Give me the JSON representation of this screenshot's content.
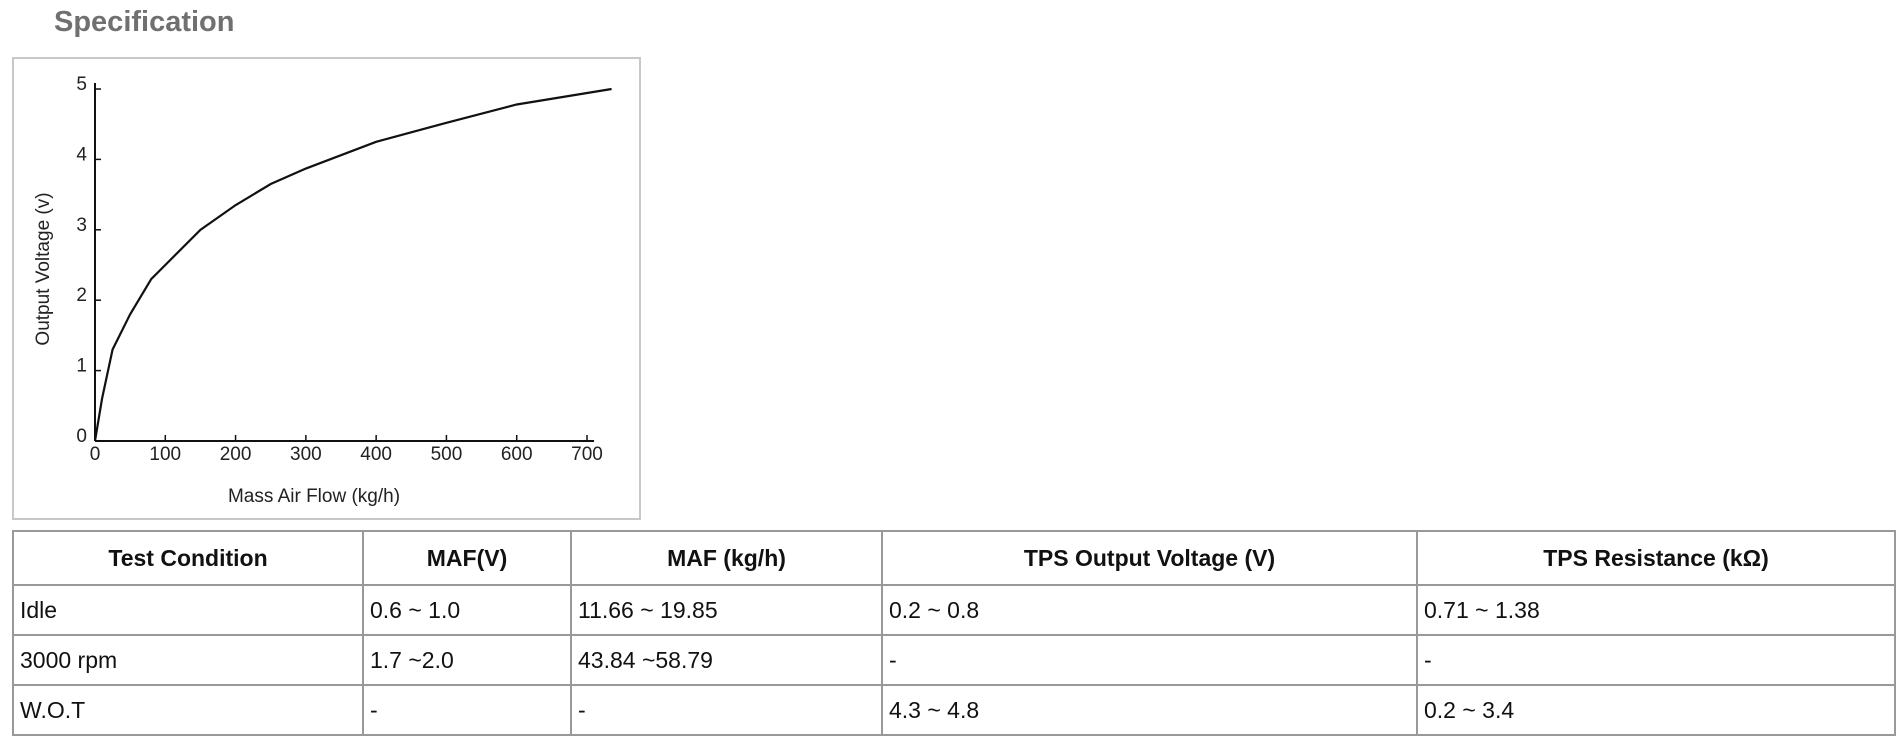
{
  "header": {
    "title": "Specification"
  },
  "chart_data": {
    "type": "line",
    "xlabel": "Mass Air Flow (kg/h)",
    "ylabel": "Output Voltage (v)",
    "x": [
      0,
      10,
      25,
      50,
      80,
      100,
      150,
      200,
      250,
      300,
      400,
      500,
      600,
      735
    ],
    "series": [
      {
        "color": "#111111",
        "values": [
          0,
          0.6,
          1.3,
          1.8,
          2.3,
          2.5,
          3.0,
          3.35,
          3.65,
          3.87,
          4.25,
          4.52,
          4.78,
          5.0
        ]
      }
    ],
    "xlim": [
      0,
      710
    ],
    "ylim": [
      0,
      5
    ],
    "xticks": [
      0,
      100,
      200,
      300,
      400,
      500,
      600,
      700
    ],
    "yticks": [
      0,
      1,
      2,
      3,
      4,
      5
    ]
  },
  "table": {
    "header": [
      "Test Condition",
      "MAF(V)",
      "MAF (kg/h)",
      "TPS Output Voltage (V)",
      "TPS Resistance (kΩ)"
    ],
    "rows": [
      [
        "Idle",
        "0.6 ~ 1.0",
        "11.66 ~ 19.85",
        "0.2 ~ 0.8",
        "0.71 ~ 1.38"
      ],
      [
        "3000 rpm",
        "1.7 ~2.0",
        "43.84 ~58.79",
        "-",
        "-"
      ],
      [
        "W.O.T",
        "-",
        "-",
        "4.3 ~ 4.8",
        "0.2 ~ 3.4"
      ]
    ]
  }
}
